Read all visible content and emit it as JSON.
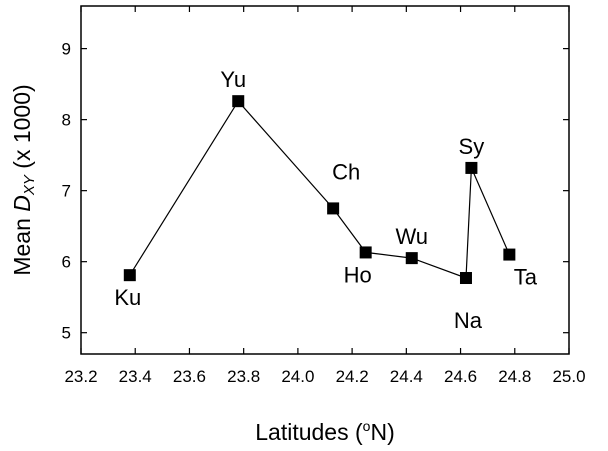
{
  "chart_data": {
    "type": "line",
    "xlabel": "Latitudes (°N)",
    "xlabel_parts": {
      "before": "Latitudes (",
      "degree": "o",
      "unit": "N)"
    },
    "ylabel": "Mean DXY (x 1000)",
    "ylabel_parts": {
      "before": "Mean ",
      "italic": "D",
      "subscript": "XY",
      "after": " (x 1000)"
    },
    "xlim": [
      23.2,
      25.0
    ],
    "ylim": [
      4.7,
      9.6
    ],
    "x_ticks": [
      "23.2",
      "23.4",
      "23.6",
      "23.8",
      "24.0",
      "24.2",
      "24.4",
      "24.6",
      "24.8",
      "25.0"
    ],
    "y_ticks": [
      "5",
      "6",
      "7",
      "8",
      "9"
    ],
    "grid": false,
    "legend": "none",
    "marker": "square",
    "points": [
      {
        "label": "Ku",
        "x": 23.38,
        "y": 5.81
      },
      {
        "label": "Yu",
        "x": 23.78,
        "y": 8.26
      },
      {
        "label": "Ch",
        "x": 24.13,
        "y": 6.75
      },
      {
        "label": "Ho",
        "x": 24.25,
        "y": 6.13
      },
      {
        "label": "Wu",
        "x": 24.42,
        "y": 6.05
      },
      {
        "label": "Na",
        "x": 24.62,
        "y": 5.77
      },
      {
        "label": "Sy",
        "x": 24.64,
        "y": 7.32
      },
      {
        "label": "Ta",
        "x": 24.78,
        "y": 6.1
      }
    ]
  },
  "colors": {
    "line": "#000000",
    "marker": "#000000"
  }
}
